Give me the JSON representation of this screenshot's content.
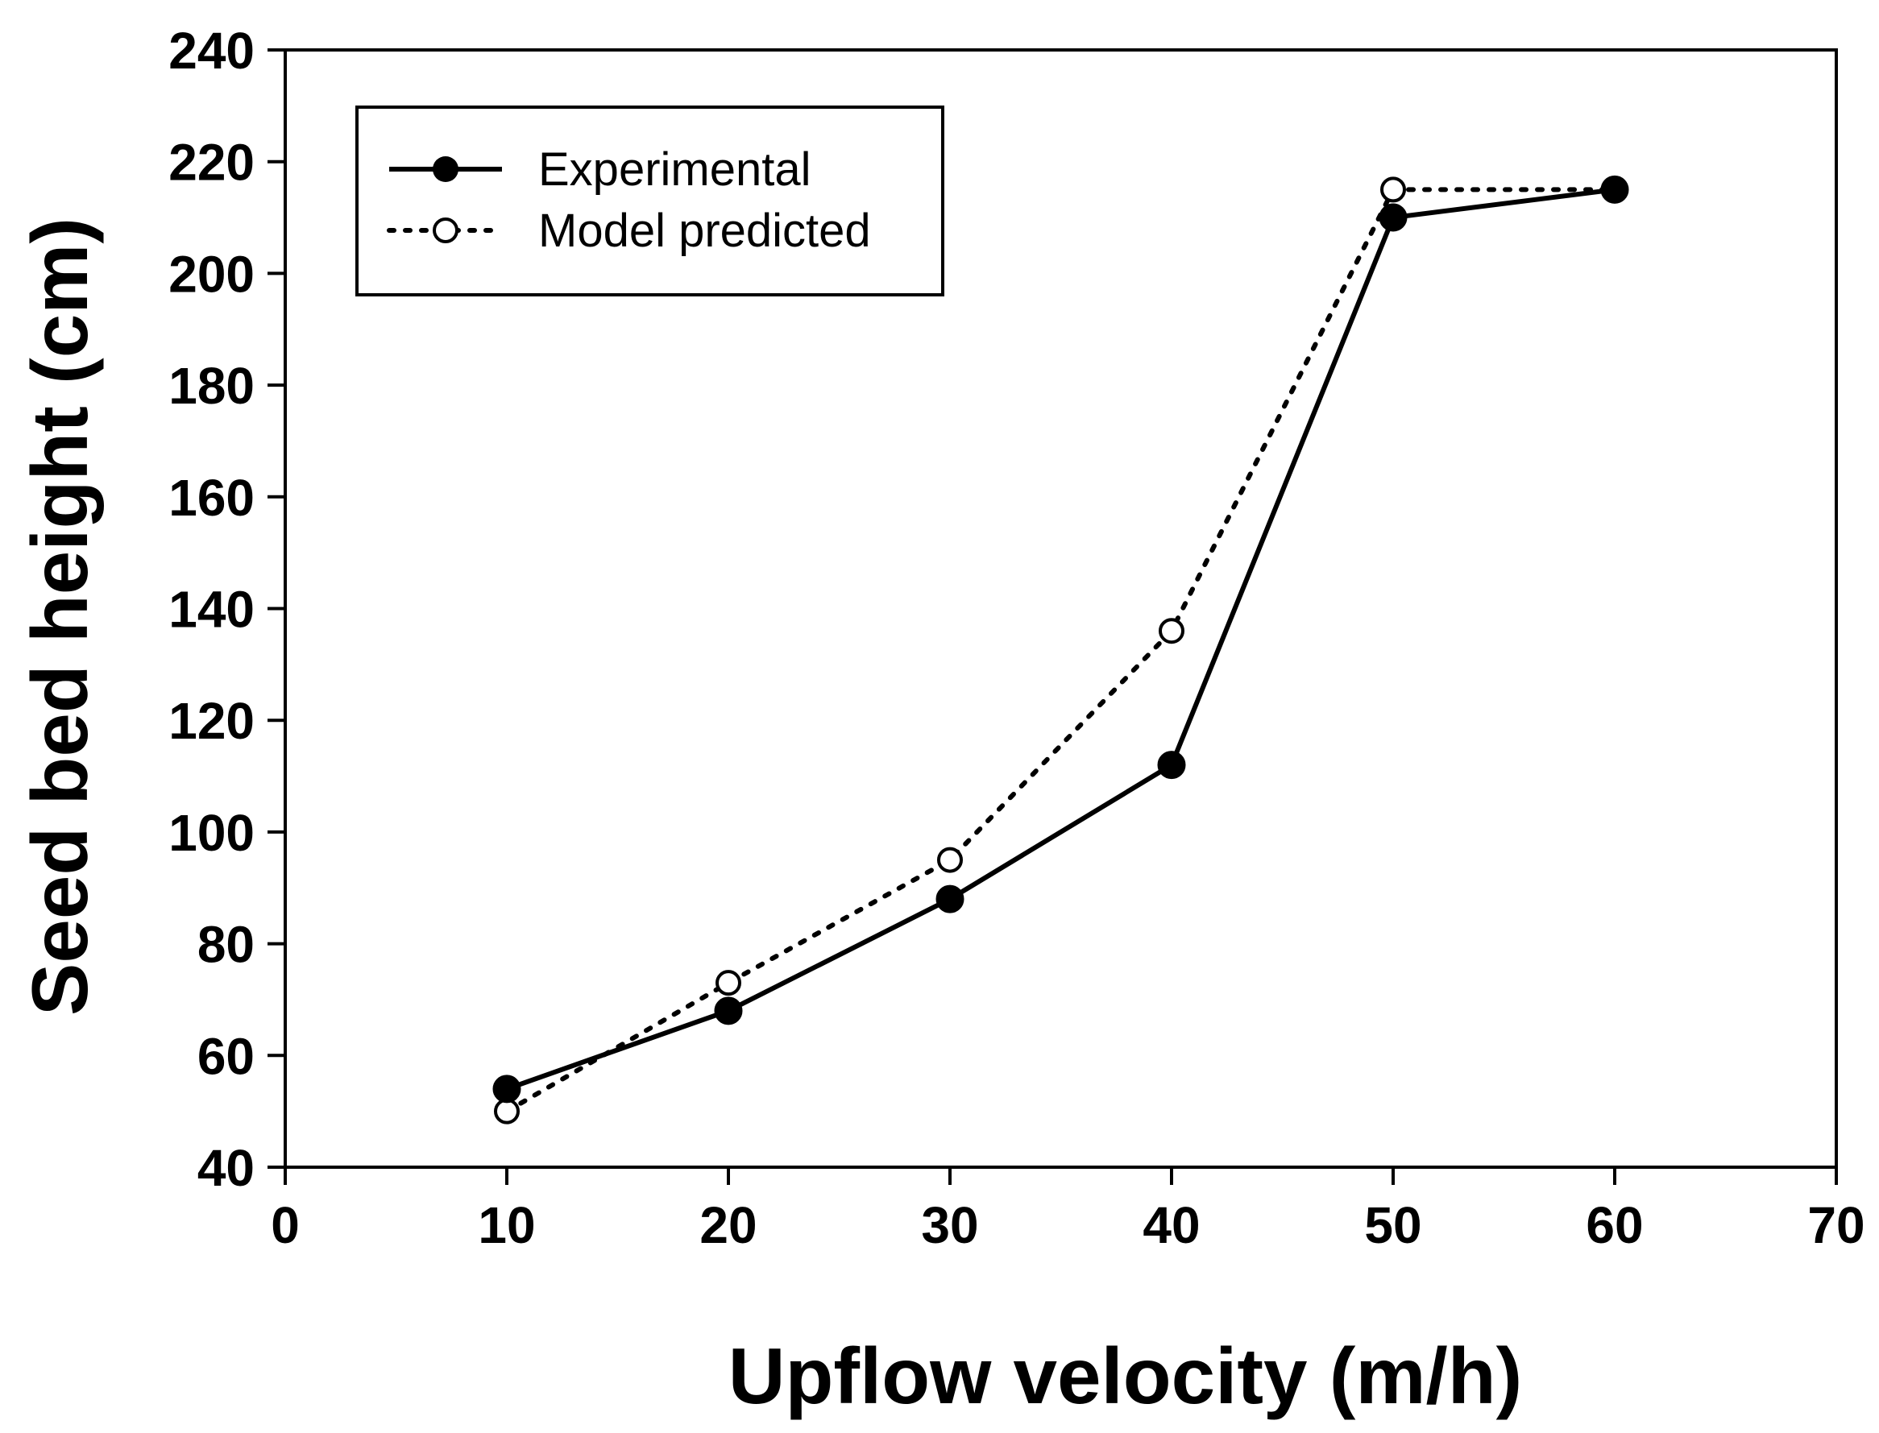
{
  "colors": {
    "background": "#ffffff",
    "ink": "#000000"
  },
  "chart_data": {
    "type": "line",
    "title": "",
    "xlabel": "Upflow velocity (m/h)",
    "ylabel": "Seed bed height (cm)",
    "xlim": [
      0,
      70
    ],
    "ylim": [
      40,
      240
    ],
    "xticks": [
      0,
      10,
      20,
      30,
      40,
      50,
      60,
      70
    ],
    "yticks": [
      40,
      60,
      80,
      100,
      120,
      140,
      160,
      180,
      200,
      220,
      240
    ],
    "grid": false,
    "legend_position": "top-left",
    "series": [
      {
        "name": "Experimental",
        "line_style": "solid",
        "marker": "filled-circle",
        "x": [
          10,
          20,
          30,
          40,
          50,
          60
        ],
        "values": [
          54,
          68,
          88,
          112,
          210,
          215
        ]
      },
      {
        "name": "Model predicted",
        "line_style": "dotted",
        "marker": "open-circle",
        "x": [
          10,
          20,
          30,
          40,
          50,
          60
        ],
        "values": [
          50,
          73,
          95,
          136,
          215,
          215
        ]
      }
    ]
  }
}
